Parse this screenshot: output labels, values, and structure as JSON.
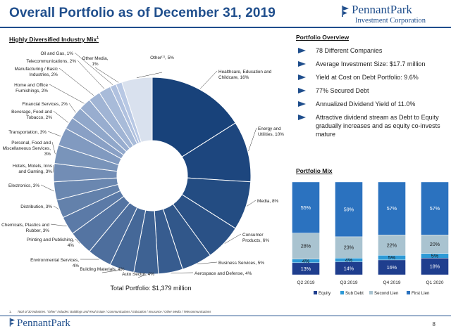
{
  "header": {
    "title": "Overall Portfolio as of December 31, 2019",
    "logo_name": "PennantPark",
    "logo_sub": "Investment Corporation"
  },
  "industry_section": {
    "heading": "Highly Diversified Industry Mix",
    "heading_sup": "1",
    "total_label": "Total Portfolio: $1,379 million"
  },
  "overview": {
    "heading": "Portfolio Overview",
    "items": [
      "78 Different Companies",
      "Average Investment Size: $17.7 million",
      "Yield at Cost on Debt Portfolio: 9.6%",
      "77% Secured Debt",
      "Annualized Dividend Yield of 11.0%",
      "Attractive dividend stream as Debt to Equity gradually increases and as equity co-invests mature"
    ]
  },
  "mix_section": {
    "heading": "Portfolio Mix"
  },
  "footer": {
    "footnote_num": "1.",
    "footnote": "Total of 30 industries. \"Other\" includes: Buildings and Real Estate / Communications / Education / Insurance / Other Media / Telecommunications",
    "logo": "PennantPark",
    "page": "8"
  },
  "colors": {
    "brand": "#1f4e8c",
    "equity": "#1f3e8e",
    "sub_debt": "#2e9ad6",
    "second_lien": "#a9c3d0",
    "first_lien": "#2b72bf"
  },
  "chart_data": [
    {
      "type": "pie",
      "style": "donut",
      "slices": [
        {
          "name": "Healthcare, Education and Childcare",
          "value": 16,
          "label": "Healthcare, Education and Childcare, 16%"
        },
        {
          "name": "Energy and Utilities",
          "value": 10,
          "label": "Energy and Utilities, 10%"
        },
        {
          "name": "Media",
          "value": 8,
          "label": "Media, 8%"
        },
        {
          "name": "Consumer Products",
          "value": 6,
          "label": "Consumer Products, 6%"
        },
        {
          "name": "Business Services",
          "value": 5,
          "label": "Business Services, 5%"
        },
        {
          "name": "Aerospace and Defense",
          "value": 4,
          "label": "Aerospace and Defense, 4%"
        },
        {
          "name": "Auto Sector",
          "value": 4,
          "label": "Auto Sector, 4%"
        },
        {
          "name": "Building Materials",
          "value": 4,
          "label": "Building Materials, 4%"
        },
        {
          "name": "Environmental Services",
          "value": 4,
          "label": "Environmental Services, 4%"
        },
        {
          "name": "Printing and Publishing",
          "value": 4,
          "label": "Printing and Publishing, 4%"
        },
        {
          "name": "Chemicals, Plastics and Rubber",
          "value": 3,
          "label": "Chemicals, Plastics and Rubber, 3%"
        },
        {
          "name": "Distribution",
          "value": 3,
          "label": "Distribution, 3%"
        },
        {
          "name": "Electronics",
          "value": 3,
          "label": "Electronics, 3%"
        },
        {
          "name": "Hotels, Motels, Inns and Gaming",
          "value": 3,
          "label": "Hotels, Motels, Inns and Gaming, 3%"
        },
        {
          "name": "Personal, Food and Miscellaneous Services",
          "value": 3,
          "label": "Personal, Food and Miscellaneous Services, 3%"
        },
        {
          "name": "Transportation",
          "value": 3,
          "label": "Transportation, 3%"
        },
        {
          "name": "Beverage, Food and Tobacco",
          "value": 2,
          "label": "Beverage, Food and Tobacco, 2%"
        },
        {
          "name": "Financial Services",
          "value": 2,
          "label": "Financial Services, 2%"
        },
        {
          "name": "Home and Office Furnishings",
          "value": 2,
          "label": "Home and Office Furnishings, 2%"
        },
        {
          "name": "Manufacturing / Basic Industries",
          "value": 2,
          "label": "Manufacturing / Basic Industries, 2%"
        },
        {
          "name": "Telecommunications",
          "value": 2,
          "label": "Telecommunications, 2%"
        },
        {
          "name": "Oil and Gas",
          "value": 1,
          "label": "Oil and Gas, 1%"
        },
        {
          "name": "Other Media",
          "value": 1,
          "label": "Other Media, 1%"
        },
        {
          "name": "Other",
          "value": 5,
          "label": "Other, 5%",
          "sup": "(1)"
        }
      ]
    },
    {
      "type": "bar",
      "stacked": true,
      "categories": [
        "Q2 2019",
        "Q3 2019",
        "Q4 2019",
        "Q1 2020"
      ],
      "ylim": [
        0,
        100
      ],
      "series": [
        {
          "name": "Equity",
          "values": [
            13,
            14,
            16,
            18
          ],
          "labels": [
            "13%",
            "14%",
            "16%",
            "18%"
          ]
        },
        {
          "name": "Sub Debt",
          "values": [
            4,
            4,
            5,
            5
          ],
          "labels": [
            "4%",
            "4%",
            "5%",
            "5%"
          ]
        },
        {
          "name": "Second Lien",
          "values": [
            28,
            23,
            22,
            20
          ],
          "labels": [
            "28%",
            "23%",
            "22%",
            "20%"
          ]
        },
        {
          "name": "First Lien",
          "values": [
            55,
            59,
            57,
            57
          ],
          "labels": [
            "55%",
            "59%",
            "57%",
            "57%"
          ]
        }
      ],
      "legend": "bottom"
    }
  ]
}
